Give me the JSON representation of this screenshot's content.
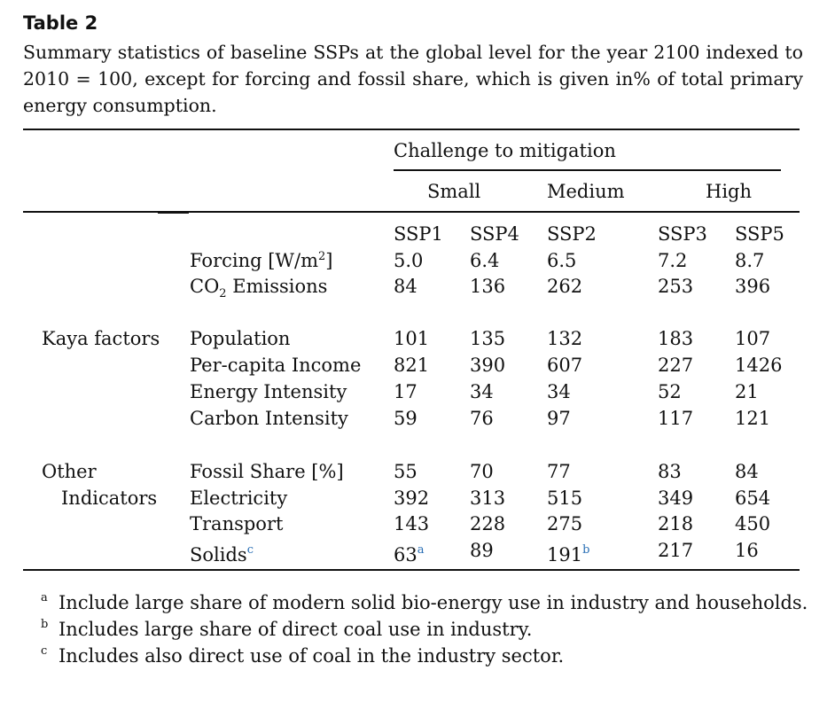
{
  "table": {
    "label": "Table 2",
    "caption": "Summary statistics of baseline SSPs at the global level for the year 2100 indexed to 2010 = 100, except for forcing and fossil share, which is given in% of total primary energy consumption.",
    "header_group": "Challenge to mitigation",
    "header_levels": [
      "Small",
      "Medium",
      "High"
    ],
    "columns": [
      "SSP1",
      "SSP4",
      "SSP2",
      "SSP3",
      "SSP5"
    ],
    "rows": {
      "forcing": {
        "label": "Forcing [W/m",
        "label_sup": "2",
        "label_end": "]",
        "values": [
          "5.0",
          "6.4",
          "6.5",
          "7.2",
          "8.7"
        ]
      },
      "co2": {
        "label": "CO",
        "label_sub": "2",
        "label_end": " Emissions",
        "values": [
          "84",
          "136",
          "262",
          "253",
          "396"
        ]
      },
      "population": {
        "label": "Population",
        "values": [
          "101",
          "135",
          "132",
          "183",
          "107"
        ]
      },
      "income": {
        "label": "Per-capita Income",
        "values": [
          "821",
          "390",
          "607",
          "227",
          "1426"
        ]
      },
      "energy_intensity": {
        "label": "Energy Intensity",
        "values": [
          "17",
          "34",
          "34",
          "52",
          "21"
        ]
      },
      "carbon_intensity": {
        "label": "Carbon Intensity",
        "values": [
          "59",
          "76",
          "97",
          "117",
          "121"
        ]
      },
      "fossil_share": {
        "label": "Fossil Share [%]",
        "values": [
          "55",
          "70",
          "77",
          "83",
          "84"
        ]
      },
      "electricity": {
        "label": "Electricity",
        "values": [
          "392",
          "313",
          "515",
          "349",
          "654"
        ]
      },
      "transport": {
        "label": "Transport",
        "values": [
          "143",
          "228",
          "275",
          "218",
          "450"
        ]
      },
      "solids": {
        "label": "Solids",
        "label_mark": "c",
        "values": [
          "63",
          "89",
          "191",
          "217",
          "16"
        ],
        "value_marks": [
          "a",
          "",
          "b",
          "",
          ""
        ]
      }
    },
    "groups": {
      "kaya": "Kaya factors",
      "other_line1": "Other",
      "other_line2": "Indicators"
    },
    "footnotes": [
      {
        "mark": "a",
        "text": "Include large share of modern solid bio-energy use in industry and households."
      },
      {
        "mark": "b",
        "text": "Includes large share of direct coal use in industry."
      },
      {
        "mark": "c",
        "text": "Includes also direct use of coal in the industry sector."
      }
    ]
  }
}
